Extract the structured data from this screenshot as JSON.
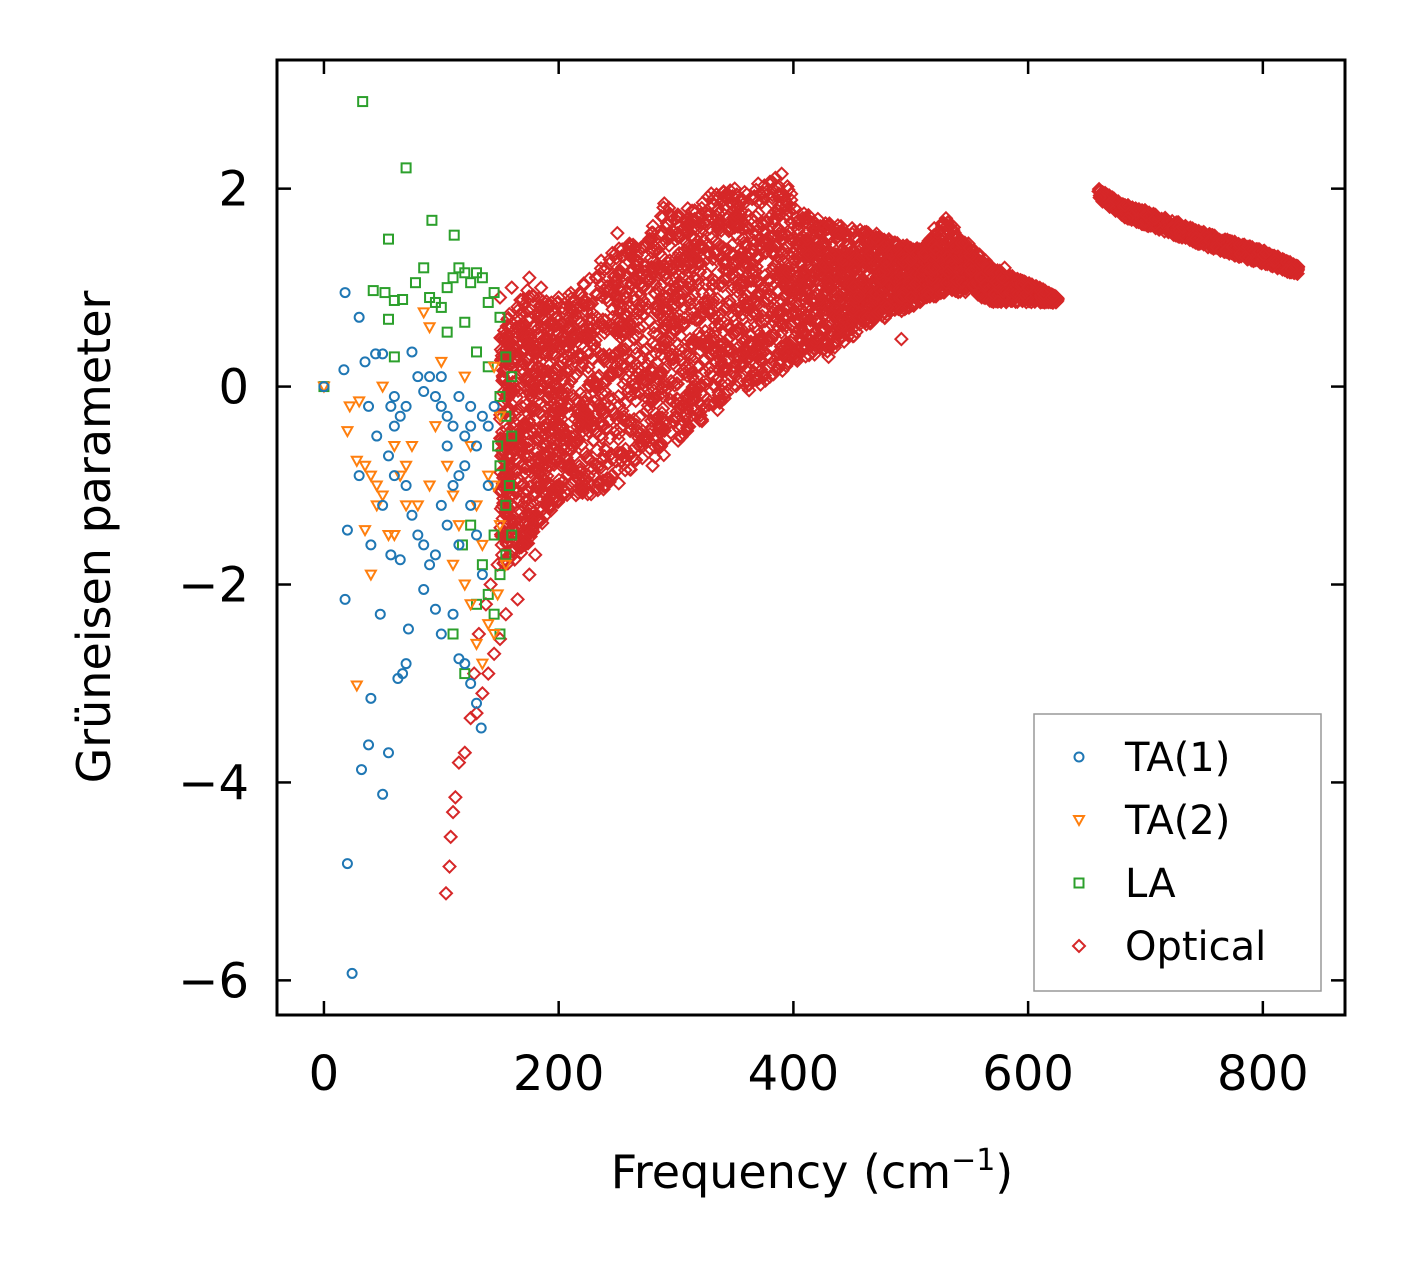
{
  "chart_data": {
    "type": "scatter",
    "title": "",
    "xlabel": "Frequency (cm",
    "xlabel_sup": "−1",
    "xlabel_suffix": ")",
    "ylabel": "Grüneisen parameter",
    "xlim": [
      -40,
      870
    ],
    "ylim": [
      -6.35,
      3.3
    ],
    "xticks": [
      0,
      200,
      400,
      600,
      800
    ],
    "xtick_labels": [
      "0",
      "200",
      "400",
      "600",
      "800"
    ],
    "yticks": [
      -6,
      -4,
      -2,
      0,
      2
    ],
    "ytick_labels": [
      "−6",
      "−4",
      "−2",
      "0",
      "2"
    ],
    "legend_position": "lower-right",
    "series": [
      {
        "name": "TA(1)",
        "marker": "circle",
        "color": "#1f77b4",
        "points": [
          [
            0,
            0
          ],
          [
            18,
            0.95
          ],
          [
            30,
            0.7
          ],
          [
            17,
            0.17
          ],
          [
            44,
            0.33
          ],
          [
            50,
            0.33
          ],
          [
            35,
            0.25
          ],
          [
            38,
            -0.2
          ],
          [
            57,
            -0.2
          ],
          [
            60,
            -0.4
          ],
          [
            65,
            -0.3
          ],
          [
            70,
            -0.2
          ],
          [
            80,
            0.1
          ],
          [
            90,
            0.1
          ],
          [
            95,
            -0.1
          ],
          [
            100,
            -0.2
          ],
          [
            105,
            -0.3
          ],
          [
            110,
            -0.4
          ],
          [
            115,
            -0.1
          ],
          [
            120,
            -0.5
          ],
          [
            125,
            -0.2
          ],
          [
            130,
            -0.6
          ],
          [
            135,
            -0.3
          ],
          [
            140,
            -0.4
          ],
          [
            60,
            -0.9
          ],
          [
            70,
            -1.0
          ],
          [
            75,
            -1.3
          ],
          [
            80,
            -1.5
          ],
          [
            85,
            -1.6
          ],
          [
            90,
            -1.8
          ],
          [
            95,
            -1.7
          ],
          [
            100,
            -1.2
          ],
          [
            105,
            -1.4
          ],
          [
            110,
            -1.0
          ],
          [
            115,
            -1.6
          ],
          [
            120,
            -0.8
          ],
          [
            125,
            -1.2
          ],
          [
            130,
            -1.5
          ],
          [
            135,
            -1.9
          ],
          [
            20,
            -1.45
          ],
          [
            18,
            -2.15
          ],
          [
            48,
            -2.3
          ],
          [
            57,
            -1.7
          ],
          [
            65,
            -1.75
          ],
          [
            85,
            -2.05
          ],
          [
            95,
            -2.25
          ],
          [
            100,
            -2.5
          ],
          [
            110,
            -2.3
          ],
          [
            115,
            -2.75
          ],
          [
            120,
            -2.8
          ],
          [
            125,
            -3.0
          ],
          [
            130,
            -3.2
          ],
          [
            134,
            -3.45
          ],
          [
            72,
            -2.45
          ],
          [
            67,
            -2.9
          ],
          [
            70,
            -2.8
          ],
          [
            63,
            -2.95
          ],
          [
            40,
            -3.15
          ],
          [
            38,
            -3.62
          ],
          [
            55,
            -3.7
          ],
          [
            32,
            -3.87
          ],
          [
            50,
            -4.12
          ],
          [
            20,
            -4.82
          ],
          [
            24,
            -5.93
          ],
          [
            30,
            -0.9
          ],
          [
            40,
            -1.6
          ],
          [
            45,
            -0.5
          ],
          [
            50,
            -1.2
          ],
          [
            55,
            -0.7
          ],
          [
            60,
            -0.1
          ],
          [
            75,
            0.35
          ],
          [
            85,
            -0.05
          ],
          [
            100,
            0.1
          ],
          [
            105,
            -0.6
          ],
          [
            115,
            -0.9
          ],
          [
            125,
            -0.4
          ],
          [
            140,
            -1.0
          ],
          [
            145,
            -0.2
          ]
        ]
      },
      {
        "name": "TA(2)",
        "marker": "triangle-down",
        "color": "#ff7f0e",
        "points": [
          [
            0,
            0
          ],
          [
            30,
            -0.15
          ],
          [
            20,
            -0.45
          ],
          [
            28,
            -0.75
          ],
          [
            35,
            -0.8
          ],
          [
            40,
            -0.9
          ],
          [
            45,
            -1.0
          ],
          [
            50,
            -1.1
          ],
          [
            60,
            -0.6
          ],
          [
            65,
            -0.9
          ],
          [
            70,
            -0.8
          ],
          [
            75,
            -0.6
          ],
          [
            80,
            -1.2
          ],
          [
            90,
            -1.0
          ],
          [
            95,
            -0.4
          ],
          [
            100,
            0.25
          ],
          [
            105,
            -0.8
          ],
          [
            110,
            -1.1
          ],
          [
            115,
            -1.4
          ],
          [
            120,
            0.1
          ],
          [
            125,
            -0.6
          ],
          [
            130,
            -1.2
          ],
          [
            135,
            -1.6
          ],
          [
            140,
            -0.9
          ],
          [
            145,
            0.2
          ],
          [
            145,
            -1.0
          ],
          [
            150,
            -0.3
          ],
          [
            150,
            -1.4
          ],
          [
            155,
            -1.8
          ],
          [
            45,
            -1.2
          ],
          [
            40,
            -1.9
          ],
          [
            35,
            -1.45
          ],
          [
            28,
            -3.02
          ],
          [
            55,
            -1.5
          ],
          [
            90,
            0.6
          ],
          [
            85,
            0.75
          ],
          [
            125,
            -2.2
          ],
          [
            130,
            -2.6
          ],
          [
            135,
            -2.8
          ],
          [
            140,
            -2.4
          ],
          [
            145,
            -2.5
          ],
          [
            120,
            -2.0
          ],
          [
            110,
            -1.8
          ],
          [
            148,
            -2.1
          ],
          [
            22,
            -0.2
          ],
          [
            50,
            0.0
          ],
          [
            60,
            -1.5
          ],
          [
            70,
            -1.2
          ]
        ]
      },
      {
        "name": "LA",
        "marker": "square",
        "color": "#2ca02c",
        "points": [
          [
            0,
            0
          ],
          [
            33,
            2.88
          ],
          [
            70,
            2.21
          ],
          [
            55,
            1.49
          ],
          [
            92,
            1.68
          ],
          [
            111,
            1.53
          ],
          [
            42,
            0.97
          ],
          [
            52,
            0.95
          ],
          [
            60,
            0.87
          ],
          [
            67,
            0.88
          ],
          [
            78,
            1.05
          ],
          [
            85,
            1.2
          ],
          [
            90,
            0.9
          ],
          [
            95,
            0.85
          ],
          [
            100,
            0.8
          ],
          [
            105,
            1.0
          ],
          [
            110,
            1.1
          ],
          [
            115,
            1.2
          ],
          [
            120,
            1.15
          ],
          [
            125,
            1.05
          ],
          [
            130,
            1.15
          ],
          [
            135,
            1.1
          ],
          [
            140,
            0.85
          ],
          [
            145,
            0.95
          ],
          [
            150,
            0.7
          ],
          [
            55,
            0.68
          ],
          [
            60,
            0.3
          ],
          [
            105,
            0.55
          ],
          [
            120,
            0.65
          ],
          [
            130,
            0.35
          ],
          [
            140,
            0.2
          ],
          [
            150,
            -0.1
          ],
          [
            155,
            -0.3
          ],
          [
            160,
            -0.5
          ],
          [
            150,
            -0.8
          ],
          [
            155,
            -1.2
          ],
          [
            160,
            -1.5
          ],
          [
            145,
            -1.5
          ],
          [
            150,
            -1.9
          ],
          [
            155,
            -1.7
          ],
          [
            140,
            -2.1
          ],
          [
            145,
            -2.3
          ],
          [
            150,
            -2.5
          ],
          [
            110,
            -2.5
          ],
          [
            120,
            -2.9
          ],
          [
            130,
            -2.2
          ],
          [
            135,
            -1.8
          ],
          [
            125,
            -1.4
          ],
          [
            118,
            -1.6
          ],
          [
            160,
            0.1
          ],
          [
            158,
            -1.0
          ],
          [
            155,
            0.3
          ],
          [
            148,
            -0.6
          ]
        ]
      },
      {
        "name": "Optical",
        "marker": "diamond",
        "color": "#d62728",
        "points": [
          [
            150,
            0.9
          ],
          [
            160,
            1.0
          ],
          [
            175,
            1.1
          ],
          [
            185,
            1.0
          ],
          [
            200,
            0.9
          ],
          [
            180,
            -1.7
          ],
          [
            175,
            -1.9
          ],
          [
            165,
            -2.15
          ],
          [
            170,
            -1.6
          ],
          [
            160,
            -1.2
          ],
          [
            155,
            -2.3
          ],
          [
            150,
            -2.55
          ],
          [
            145,
            -2.7
          ],
          [
            140,
            -2.9
          ],
          [
            135,
            -3.1
          ],
          [
            130,
            -3.3
          ],
          [
            125,
            -3.35
          ],
          [
            120,
            -3.7
          ],
          [
            115,
            -3.8
          ],
          [
            112,
            -4.15
          ],
          [
            110,
            -4.3
          ],
          [
            108,
            -4.55
          ],
          [
            107,
            -4.85
          ],
          [
            104,
            -5.12
          ],
          [
            128,
            -2.9
          ],
          [
            132,
            -2.5
          ],
          [
            138,
            -2.2
          ],
          [
            142,
            -2.0
          ],
          [
            148,
            -1.8
          ],
          [
            155,
            -1.3
          ],
          [
            205,
            -0.8
          ],
          [
            210,
            0.8
          ],
          [
            215,
            0.5
          ],
          [
            230,
            -0.9
          ],
          [
            240,
            -1.0
          ],
          [
            260,
            -0.7
          ],
          [
            280,
            -0.8
          ],
          [
            300,
            -0.3
          ],
          [
            310,
            -0.4
          ],
          [
            320,
            0.0
          ],
          [
            350,
            0.2
          ],
          [
            360,
            0.0
          ],
          [
            380,
            0.1
          ],
          [
            390,
            0.4
          ],
          [
            430,
            0.3
          ],
          [
            440,
            0.6
          ],
          [
            480,
            0.8
          ],
          [
            492,
            0.48
          ],
          [
            500,
            0.9
          ],
          [
            520,
            1.2
          ],
          [
            560,
            1.1
          ],
          [
            600,
            1.0
          ],
          [
            620,
            0.9
          ],
          [
            250,
            1.55
          ],
          [
            270,
            1.4
          ],
          [
            290,
            1.85
          ],
          [
            310,
            1.8
          ],
          [
            330,
            1.95
          ],
          [
            350,
            2.0
          ],
          [
            370,
            2.05
          ],
          [
            390,
            2.15
          ],
          [
            410,
            1.7
          ],
          [
            450,
            1.6
          ],
          [
            470,
            1.5
          ],
          [
            500,
            1.4
          ],
          [
            520,
            1.6
          ],
          [
            530,
            1.7
          ],
          [
            550,
            1.4
          ],
          [
            580,
            1.2
          ],
          [
            190,
            -1.0
          ],
          [
            200,
            -0.5
          ],
          [
            220,
            0.2
          ],
          [
            240,
            0.6
          ],
          [
            260,
            1.0
          ],
          [
            280,
            1.2
          ],
          [
            300,
            1.3
          ],
          [
            330,
            1.5
          ],
          [
            360,
            1.6
          ],
          [
            400,
            1.5
          ],
          [
            430,
            1.3
          ],
          [
            460,
            1.2
          ]
        ]
      }
    ],
    "optical_bands": [
      {
        "x": [
          150,
          160,
          175,
          190,
          205,
          225,
          250,
          270,
          290,
          310,
          330,
          350,
          370,
          390,
          410,
          430,
          450,
          470,
          490,
          510,
          530,
          550,
          570,
          590,
          610,
          625
        ],
        "y_top": [
          0.5,
          0.8,
          1.0,
          0.95,
          0.9,
          1.1,
          1.5,
          1.4,
          1.85,
          1.75,
          1.95,
          2.0,
          2.0,
          2.15,
          1.75,
          1.65,
          1.6,
          1.55,
          1.45,
          1.4,
          1.7,
          1.45,
          1.2,
          1.1,
          1.0,
          0.9
        ],
        "y_bottom": [
          -1.8,
          -1.8,
          -1.6,
          -1.3,
          -1.1,
          -1.1,
          -1.0,
          -0.75,
          -0.7,
          -0.45,
          -0.3,
          -0.1,
          0.0,
          0.15,
          0.3,
          0.35,
          0.5,
          0.65,
          0.75,
          0.85,
          0.95,
          0.95,
          0.85,
          0.85,
          0.85,
          0.85
        ]
      },
      {
        "x": [
          660,
          680,
          700,
          720,
          740,
          760,
          780,
          800,
          820,
          830
        ],
        "y_top": [
          2.0,
          1.85,
          1.78,
          1.7,
          1.6,
          1.52,
          1.45,
          1.38,
          1.28,
          1.22
        ],
        "y_bottom": [
          1.9,
          1.72,
          1.63,
          1.55,
          1.46,
          1.38,
          1.31,
          1.24,
          1.16,
          1.14
        ]
      }
    ]
  }
}
